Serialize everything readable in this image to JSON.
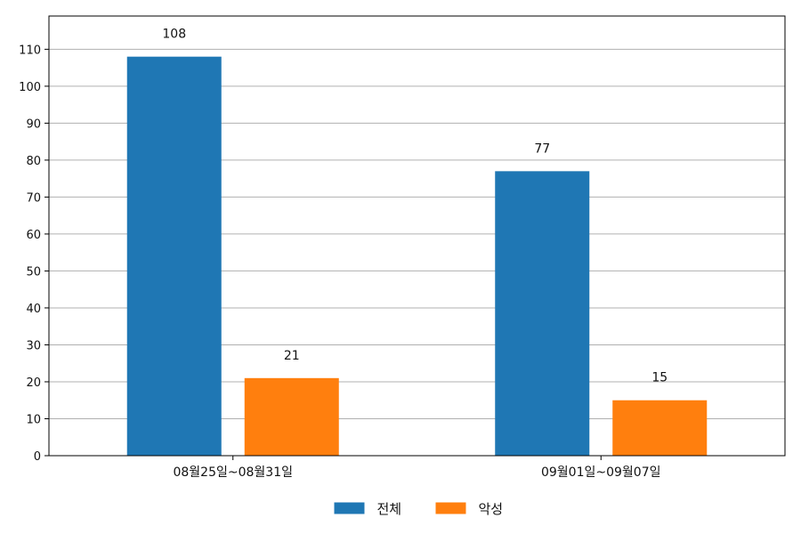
{
  "chart_data": {
    "type": "bar",
    "categories": [
      "08월25일~08월31일",
      "09월01일~09월07일"
    ],
    "series": [
      {
        "name": "전체",
        "values": [
          108,
          77
        ],
        "color": "#1f77b4"
      },
      {
        "name": "악성",
        "values": [
          21,
          15
        ],
        "color": "#ff7f0e"
      }
    ],
    "ylim": [
      0,
      119
    ],
    "yticks": [
      0,
      10,
      20,
      30,
      40,
      50,
      60,
      70,
      80,
      90,
      100,
      110
    ],
    "grid": true,
    "legend_position": "bottom-center",
    "data_labels": true
  }
}
